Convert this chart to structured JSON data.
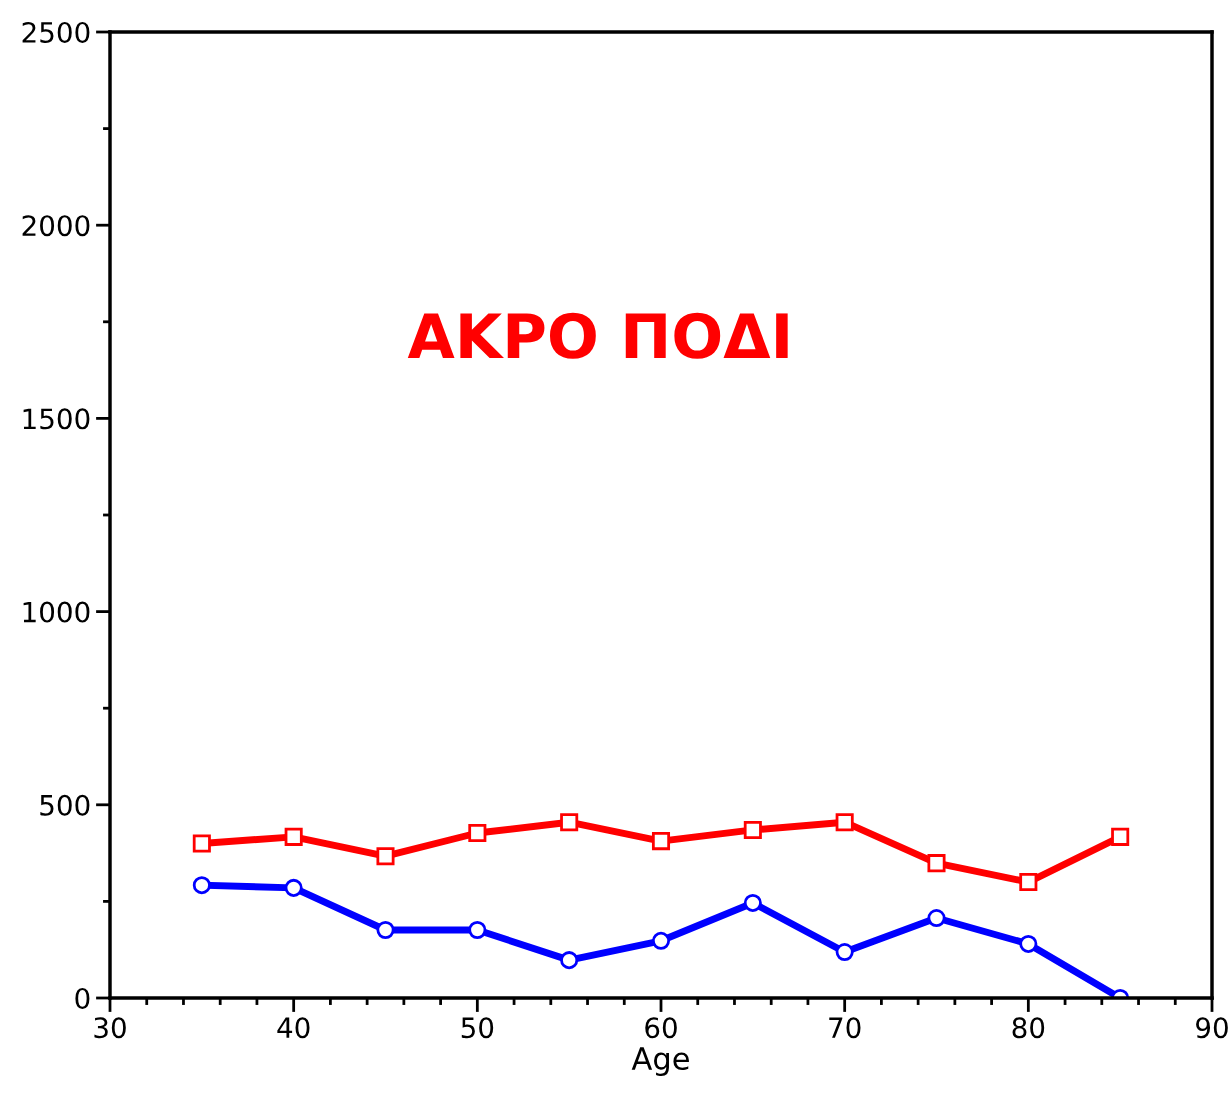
{
  "chart_data": {
    "type": "line",
    "xlabel": "Age",
    "annotations": [
      "ΑΚΡΟ ΠΟΔΙ"
    ],
    "xlim": [
      30,
      90
    ],
    "xticks": [
      30,
      40,
      50,
      60,
      70,
      80,
      90
    ],
    "ylim": [
      0,
      2500
    ],
    "yticks": [
      0,
      500,
      1000,
      1500,
      2000,
      2500
    ],
    "grid": false,
    "legend": false,
    "series": [
      {
        "color": "#ff0000",
        "marker": "square",
        "x": [
          35,
          40,
          45,
          50,
          55,
          60,
          65,
          70,
          75,
          80,
          85
        ],
        "values": [
          400,
          417,
          367,
          427,
          455,
          406,
          435,
          455,
          349,
          300,
          417
        ]
      },
      {
        "color": "#0000ff",
        "marker": "circle",
        "x": [
          35,
          40,
          45,
          50,
          55,
          60,
          65,
          70,
          75,
          80,
          85
        ],
        "values": [
          292,
          285,
          176,
          176,
          98,
          148,
          246,
          119,
          207,
          140,
          0
        ]
      }
    ]
  }
}
